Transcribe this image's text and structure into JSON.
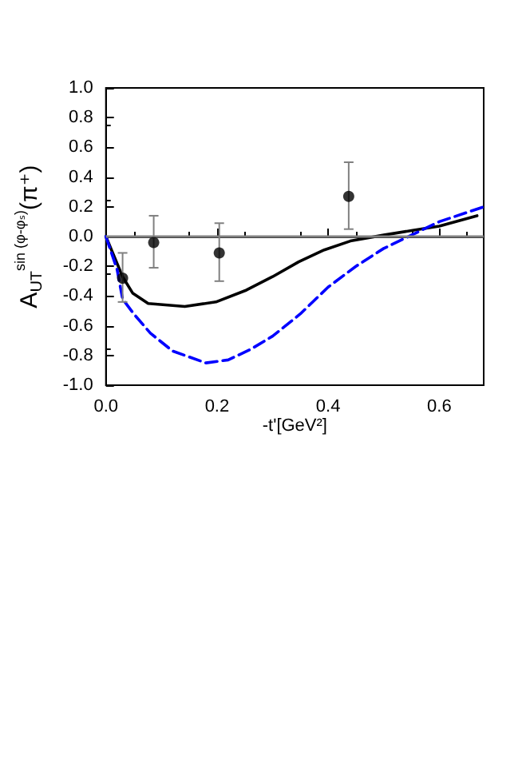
{
  "chart_data": {
    "type": "line",
    "xlabel": "-t'[GeV²]",
    "ylabel": "A$_{UT}$$^{sin (φ-φₛ)}$(π⁺)",
    "xlim": [
      0,
      0.68
    ],
    "xticks": [
      {
        "value": 0,
        "label": "0.0"
      },
      0.2,
      0.4,
      0.6
    ],
    "ylim": [
      -1,
      1
    ],
    "yticks": [
      {
        "value": -1,
        "label": "-1.0"
      },
      -0.8,
      -0.6,
      -0.4,
      -0.2,
      {
        "value": 0,
        "label": "0.0"
      },
      0.2,
      0.4,
      0.6,
      0.8,
      {
        "value": 1,
        "label": "1.0"
      }
    ],
    "grid": false,
    "ref_lines": [
      {
        "axis": "y",
        "value": 0,
        "color": "#808080"
      }
    ],
    "series": [
      {
        "type": "line",
        "color": "#000000",
        "line_style": "solid",
        "marker": "none",
        "x": [
          0,
          0.03,
          0.048,
          0.076,
          0.142,
          0.198,
          0.253,
          0.3,
          0.347,
          0.393,
          0.44,
          0.5,
          0.55,
          0.6,
          0.668
        ],
        "values": [
          0,
          -0.27,
          -0.38,
          -0.45,
          -0.47,
          -0.44,
          -0.36,
          -0.27,
          -0.17,
          -0.09,
          -0.03,
          0.01,
          0.04,
          0.07,
          0.14
        ]
      },
      {
        "type": "line",
        "color": "#0000ff",
        "line_style": "dashed",
        "marker": "none",
        "x": [
          0,
          0.02,
          0.03,
          0.05,
          0.08,
          0.12,
          0.18,
          0.22,
          0.26,
          0.3,
          0.35,
          0.4,
          0.45,
          0.5,
          0.55,
          0.6,
          0.68
        ],
        "values": [
          0,
          -0.22,
          -0.42,
          -0.52,
          -0.65,
          -0.77,
          -0.85,
          -0.83,
          -0.76,
          -0.67,
          -0.52,
          -0.34,
          -0.2,
          -0.08,
          0.01,
          0.1,
          0.2
        ]
      },
      {
        "type": "scatter",
        "color": "#000000",
        "marker": "circle",
        "x": [
          0.03,
          0.086,
          0.204,
          0.437
        ],
        "values": [
          -0.28,
          -0.04,
          -0.11,
          0.27
        ],
        "errors": [
          [
            -0.44,
            -0.11
          ],
          [
            -0.21,
            0.14
          ],
          [
            -0.3,
            0.09
          ],
          [
            0.05,
            0.5
          ]
        ]
      }
    ]
  }
}
